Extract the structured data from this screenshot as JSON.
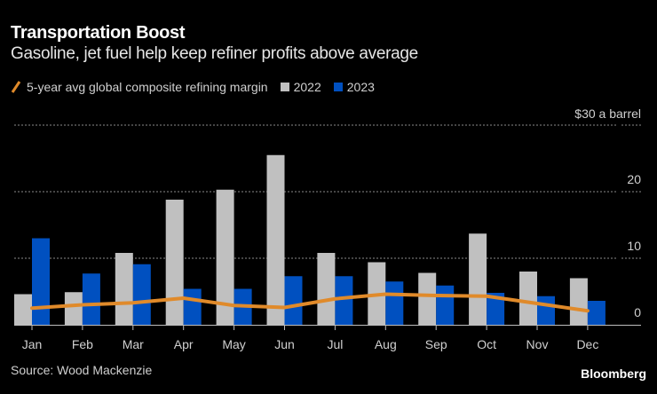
{
  "header": {
    "title": "Transportation Boost",
    "subtitle": "Gasoline, jet fuel help keep refiner profits above average"
  },
  "legend": [
    {
      "label": "5-year avg global composite refining margin",
      "type": "line",
      "color": "#e08a2a"
    },
    {
      "label": "2022",
      "type": "bar",
      "color": "#c0c0c0"
    },
    {
      "label": "2023",
      "type": "bar",
      "color": "#0050c0"
    }
  ],
  "footer": {
    "source": "Source: Wood Mackenzie",
    "brand": "Bloomberg"
  },
  "chart_data": {
    "type": "bar",
    "title": "Transportation Boost",
    "subtitle": "Gasoline, jet fuel help keep refiner profits above average",
    "xlabel": "",
    "ylabel": "$ a barrel",
    "unit_label": "$30 a barrel",
    "ylim": [
      0,
      30
    ],
    "yticks": [
      0,
      10,
      20,
      30
    ],
    "ytick_labels": [
      "0",
      "10",
      "20",
      "$30 a barrel"
    ],
    "grid": true,
    "legend_position": "top-left",
    "categories": [
      "Jan",
      "Feb",
      "Mar",
      "Apr",
      "May",
      "Jun",
      "Jul",
      "Aug",
      "Sep",
      "Oct",
      "Nov",
      "Dec"
    ],
    "series": [
      {
        "name": "2022",
        "type": "bar",
        "color": "#c0c0c0",
        "values": [
          4.6,
          4.9,
          10.8,
          18.8,
          20.3,
          25.5,
          10.8,
          9.4,
          7.8,
          13.7,
          8.0,
          7.0
        ]
      },
      {
        "name": "2023",
        "type": "bar",
        "color": "#0050c0",
        "values": [
          13.0,
          7.7,
          9.1,
          5.4,
          5.4,
          7.3,
          7.3,
          6.5,
          5.9,
          4.8,
          4.3,
          3.6
        ]
      },
      {
        "name": "5-year avg global composite refining margin",
        "type": "line",
        "color": "#e08a2a",
        "values": [
          2.5,
          3.0,
          3.3,
          4.0,
          2.9,
          2.6,
          3.9,
          4.6,
          4.4,
          4.3,
          3.2,
          2.1
        ]
      }
    ]
  }
}
